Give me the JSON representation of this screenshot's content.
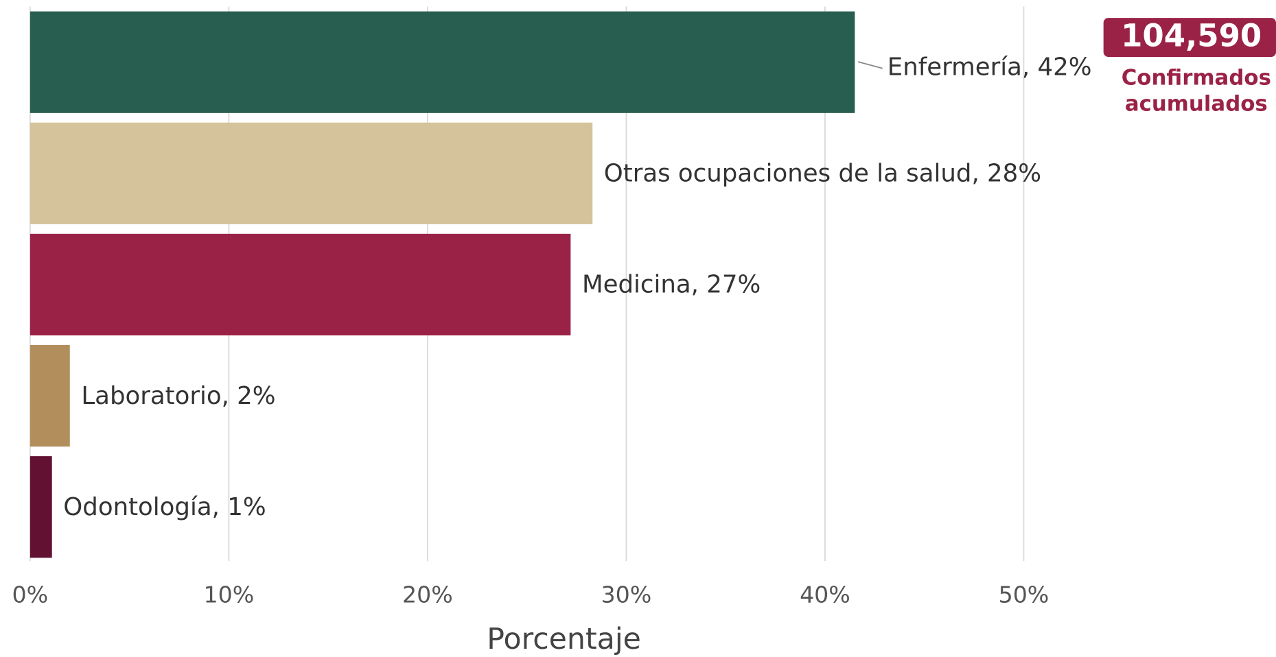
{
  "chart_data": {
    "type": "hbar",
    "values": [
      41.5,
      28.3,
      27.2,
      2.0,
      1.1
    ],
    "value_labels": [
      "Enfermería, 42%",
      "Otras ocupaciones de la salud, 28%",
      "Medicina, 27%",
      "Laboratorio, 2%",
      "Odontología, 1%"
    ],
    "colors": [
      "#285e4f",
      "#d4c39b",
      "#9b2247",
      "#b38e5d",
      "#621132"
    ],
    "xlabel": "Porcentaje",
    "xlim": [
      0,
      50
    ],
    "xticks": [
      {
        "value": 0,
        "label": "0%"
      },
      {
        "value": 10,
        "label": "10%"
      },
      {
        "value": 20,
        "label": "20%"
      },
      {
        "value": 30,
        "label": "30%"
      },
      {
        "value": 40,
        "label": "40%"
      },
      {
        "value": 50,
        "label": "50%"
      }
    ],
    "grid": true,
    "total": "104,590",
    "total_caption": [
      "Confirmados",
      "acumulados"
    ]
  }
}
